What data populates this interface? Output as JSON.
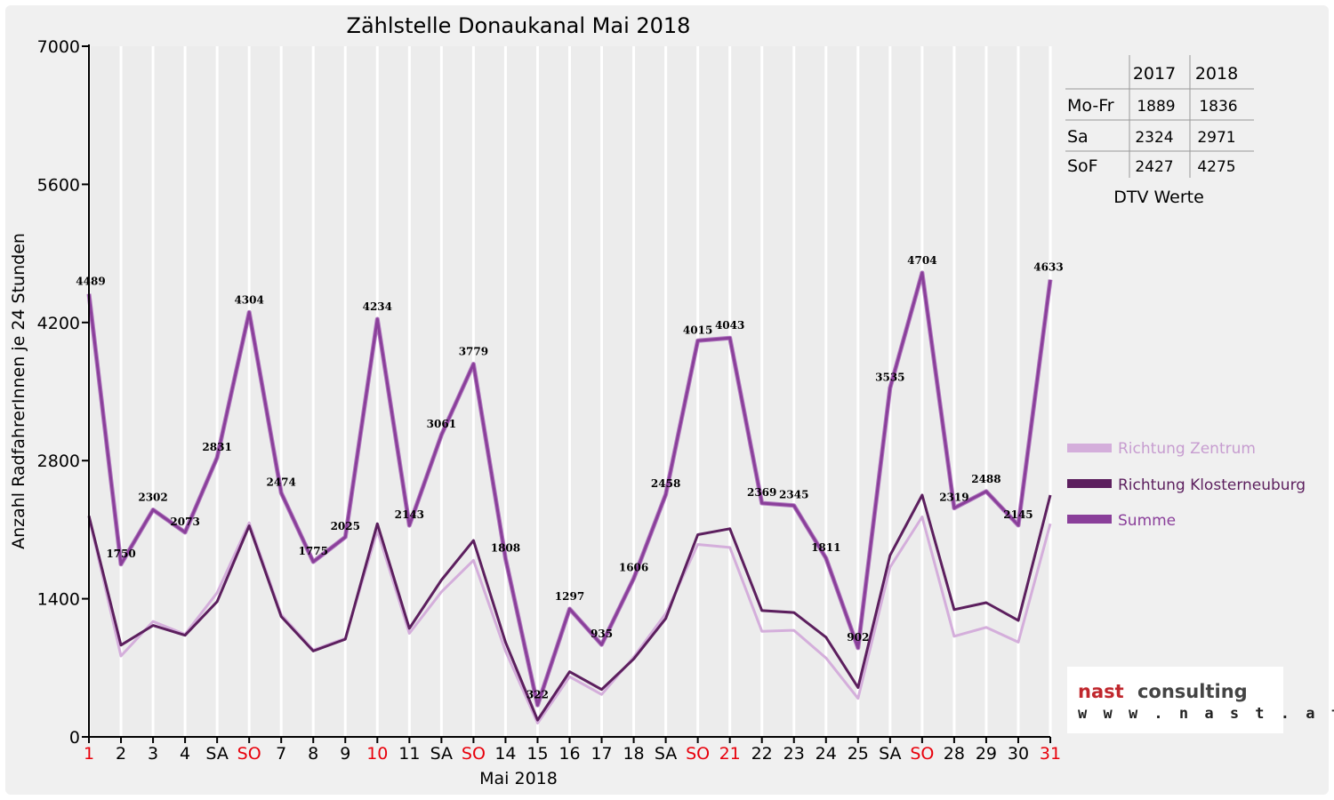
{
  "chart_data": {
    "type": "line",
    "title": "Zählstelle Donaukanal Mai 2018",
    "xlabel": "Mai 2018",
    "ylabel": "Anzahl RadfahrerInnen je 24 Stunden",
    "ylim": [
      0,
      7000
    ],
    "yticks": [
      0,
      1400,
      2800,
      4200,
      5600,
      7000
    ],
    "grid": "vertical",
    "legend_position": "right",
    "categories": [
      "1",
      "2",
      "3",
      "4",
      "SA",
      "SO",
      "7",
      "8",
      "9",
      "10",
      "11",
      "SA",
      "SO",
      "14",
      "15",
      "16",
      "17",
      "18",
      "SA",
      "SO",
      "21",
      "22",
      "23",
      "24",
      "25",
      "SA",
      "SO",
      "28",
      "29",
      "30",
      "31"
    ],
    "highlight_categories": [
      0,
      5,
      9,
      12,
      19,
      20,
      26,
      30
    ],
    "series": [
      {
        "name": "Richtung Zentrum",
        "color": "#d4aedb",
        "values": [
          2230,
          820,
          1170,
          1040,
          1460,
          2170,
          1240,
          880,
          1000,
          2090,
          1050,
          1470,
          1790,
          870,
          140,
          610,
          430,
          810,
          1250,
          1950,
          1920,
          1070,
          1080,
          800,
          390,
          1720,
          2230,
          1020,
          1110,
          960,
          2160
        ]
      },
      {
        "name": "Richtung Klosterneuburg",
        "color": "#5c1f5e",
        "values": [
          2240,
          930,
          1130,
          1030,
          1370,
          2140,
          1220,
          870,
          990,
          2160,
          1100,
          1590,
          1990,
          960,
          170,
          660,
          480,
          790,
          1200,
          2050,
          2110,
          1280,
          1260,
          1010,
          500,
          1840,
          2450,
          1290,
          1360,
          1180,
          2450
        ]
      },
      {
        "name": "Summe",
        "color": "#8a3f9a",
        "values": [
          4489,
          1750,
          2302,
          2073,
          2831,
          4304,
          2474,
          1775,
          2025,
          4234,
          2143,
          3061,
          3779,
          1808,
          322,
          1297,
          935,
          1606,
          2458,
          4015,
          4043,
          2369,
          2345,
          1811,
          902,
          3535,
          4704,
          2319,
          2488,
          2145,
          4633
        ]
      }
    ],
    "data_labels": [
      "4489",
      "1750",
      "2302",
      "2073",
      "2831",
      "4304",
      "2474",
      "1775",
      "2025",
      "4234",
      "2143",
      "3061",
      "3779",
      "1808",
      "322",
      "1297",
      "935",
      "1606",
      "2458",
      "4015",
      "4043",
      "2369",
      "2345",
      "1811",
      "902",
      "3535",
      "4704",
      "2319",
      "2488",
      "2145",
      "4633"
    ]
  },
  "dtv_table": {
    "caption": "DTV Werte",
    "headers": [
      "2017",
      "2018"
    ],
    "rows": [
      {
        "label": "Mo-Fr",
        "v2017": "1889",
        "v2018": "1836"
      },
      {
        "label": "Sa",
        "v2017": "2324",
        "v2018": "2971"
      },
      {
        "label": "SoF",
        "v2017": "2427",
        "v2018": "4275"
      }
    ]
  },
  "logo": {
    "word1": "nast",
    "word2": "consulting",
    "url": "w w w . n a s t . a t",
    "color1": "#c0272d",
    "color2": "#444444"
  },
  "colors": {
    "holiday": "#e8000b",
    "axis": "#000000",
    "grid": "#ffffff"
  }
}
